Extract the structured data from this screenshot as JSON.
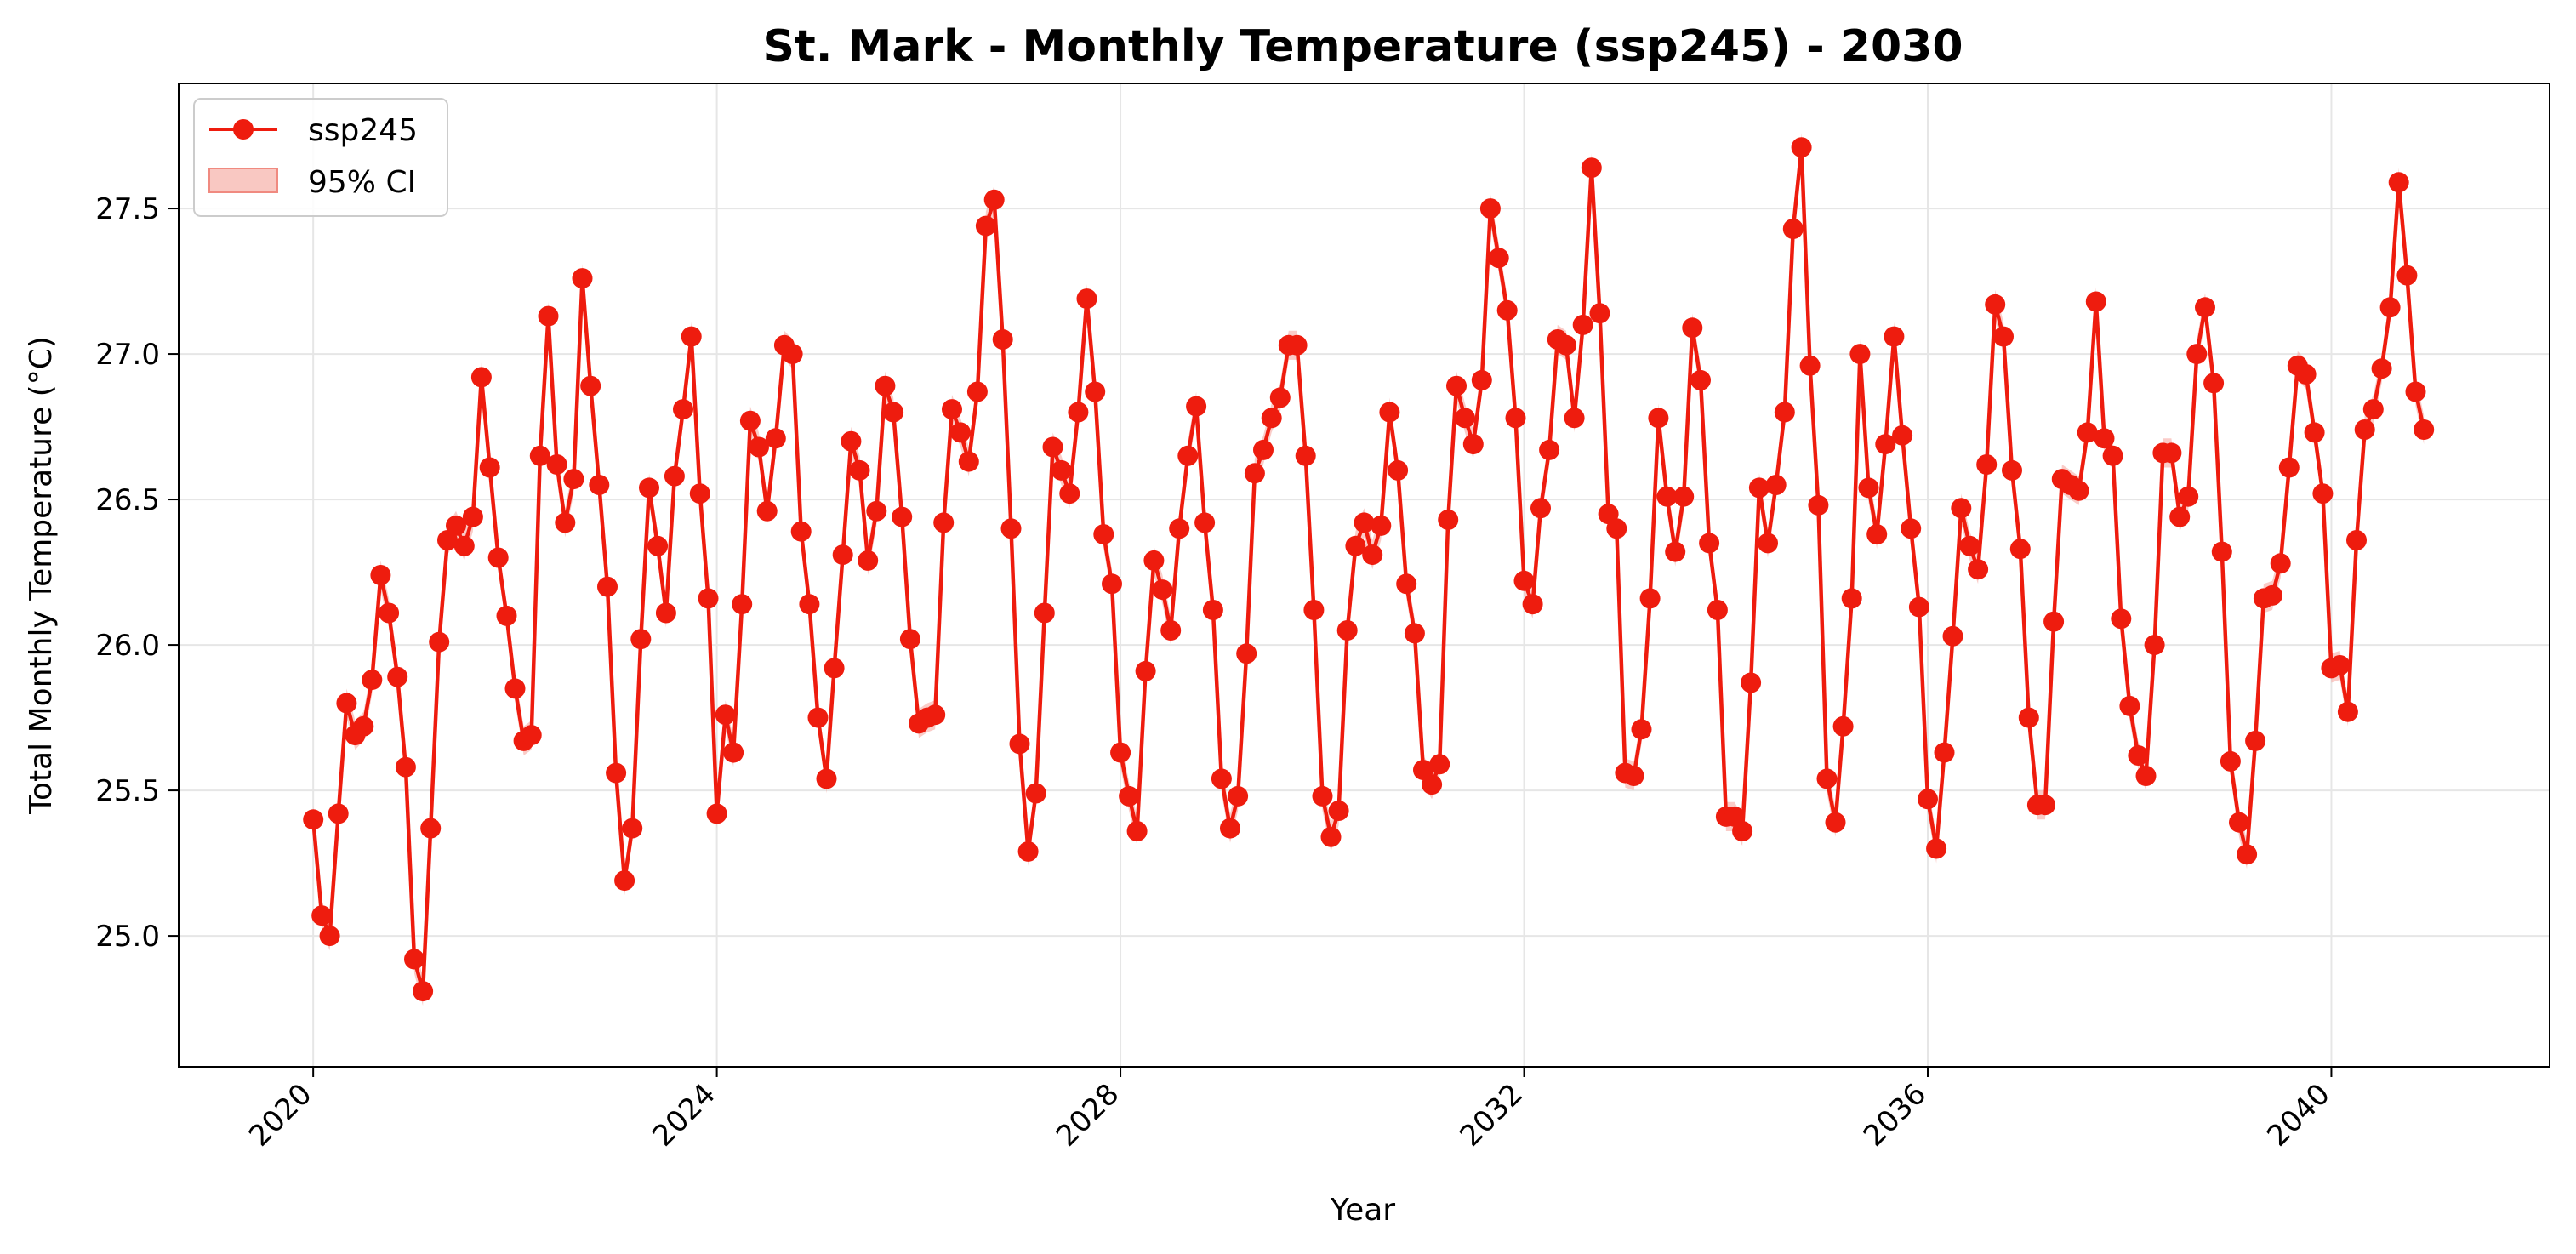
{
  "chart_data": {
    "type": "line",
    "title": "St. Mark - Monthly Temperature (ssp245) - 2030",
    "xlabel": "Year",
    "ylabel": "Total Monthly Temperature (°C)",
    "xlim": [
      "2018-09-01",
      "2042-03-01"
    ],
    "ylim": [
      24.55,
      27.93
    ],
    "x_ticks": [
      {
        "value": "2020-01-01",
        "label": "2020"
      },
      {
        "value": "2024-01-01",
        "label": "2024"
      },
      {
        "value": "2028-01-01",
        "label": "2028"
      },
      {
        "value": "2032-01-01",
        "label": "2032"
      },
      {
        "value": "2036-01-01",
        "label": "2036"
      },
      {
        "value": "2040-01-01",
        "label": "2040"
      }
    ],
    "y_ticks": [
      {
        "value": 25.0,
        "label": "25.0"
      },
      {
        "value": 25.5,
        "label": "25.5"
      },
      {
        "value": 26.0,
        "label": "26.0"
      },
      {
        "value": 26.5,
        "label": "26.5"
      },
      {
        "value": 27.0,
        "label": "27.0"
      },
      {
        "value": 27.5,
        "label": "27.5"
      }
    ],
    "grid": true,
    "legend": {
      "placement": "top-left",
      "entries": [
        {
          "label": "ssp245",
          "kind": "line-marker"
        },
        {
          "label": "95% CI",
          "kind": "band"
        }
      ]
    },
    "colors": {
      "line": "#ee1c0e",
      "band": "#f5a39a"
    },
    "ci_halfwidth": 0.05,
    "series": [
      {
        "name": "ssp245",
        "start": "2020-01",
        "frequency": "monthly",
        "values": [
          25.4,
          25.07,
          25.0,
          25.42,
          25.8,
          25.69,
          25.72,
          25.88,
          26.24,
          26.11,
          25.89,
          25.58,
          24.92,
          24.81,
          25.37,
          26.01,
          26.36,
          26.41,
          26.34,
          26.44,
          26.92,
          26.61,
          26.3,
          26.1,
          25.85,
          25.67,
          25.69,
          26.65,
          27.13,
          26.62,
          26.42,
          26.57,
          27.26,
          26.89,
          26.55,
          26.2,
          25.56,
          25.19,
          25.37,
          26.02,
          26.54,
          26.34,
          26.11,
          26.58,
          26.81,
          27.06,
          26.52,
          26.16,
          25.42,
          25.76,
          25.63,
          26.14,
          26.77,
          26.68,
          26.46,
          26.71,
          27.03,
          27.0,
          26.39,
          26.14,
          25.75,
          25.54,
          25.92,
          26.31,
          26.7,
          26.6,
          26.29,
          26.46,
          26.89,
          26.8,
          26.44,
          26.02,
          25.73,
          25.75,
          25.76,
          26.42,
          26.81,
          26.73,
          26.63,
          26.87,
          27.44,
          27.53,
          27.05,
          26.4,
          25.66,
          25.29,
          25.49,
          26.11,
          26.68,
          26.6,
          26.52,
          26.8,
          27.19,
          26.87,
          26.38,
          26.21,
          25.63,
          25.48,
          25.36,
          25.91,
          26.29,
          26.19,
          26.05,
          26.4,
          26.65,
          26.82,
          26.42,
          26.12,
          25.54,
          25.37,
          25.48,
          25.97,
          26.59,
          26.67,
          26.78,
          26.85,
          27.03,
          27.03,
          26.65,
          26.12,
          25.48,
          25.34,
          25.43,
          26.05,
          26.34,
          26.42,
          26.31,
          26.41,
          26.8,
          26.6,
          26.21,
          26.04,
          25.57,
          25.52,
          25.59,
          26.43,
          26.89,
          26.78,
          26.69,
          26.91,
          27.5,
          27.33,
          27.15,
          26.78,
          26.22,
          26.14,
          26.47,
          26.67,
          27.05,
          27.03,
          26.78,
          27.1,
          27.64,
          27.14,
          26.45,
          26.4,
          25.56,
          25.55,
          25.71,
          26.16,
          26.78,
          26.51,
          26.32,
          26.51,
          27.09,
          26.91,
          26.35,
          26.12,
          25.41,
          25.41,
          25.36,
          25.87,
          26.54,
          26.35,
          26.55,
          26.8,
          27.43,
          27.71,
          26.96,
          26.48,
          25.54,
          25.39,
          25.72,
          26.16,
          27.0,
          26.54,
          26.38,
          26.69,
          27.06,
          26.72,
          26.4,
          26.13,
          25.47,
          25.3,
          25.63,
          26.03,
          26.47,
          26.34,
          26.26,
          26.62,
          27.17,
          27.06,
          26.6,
          26.33,
          25.75,
          25.45,
          25.45,
          26.08,
          26.57,
          26.55,
          26.53,
          26.73,
          27.18,
          26.71,
          26.65,
          26.09,
          25.79,
          25.62,
          25.55,
          26.0,
          26.66,
          26.66,
          26.44,
          26.51,
          27.0,
          27.16,
          26.9,
          26.32,
          25.6,
          25.39,
          25.28,
          25.67,
          26.16,
          26.17,
          26.28,
          26.61,
          26.96,
          26.93,
          26.73,
          26.52,
          25.92,
          25.93,
          25.77,
          26.36,
          26.74,
          26.81,
          26.95,
          27.16,
          27.59,
          27.27,
          26.87,
          26.74
        ]
      }
    ]
  }
}
